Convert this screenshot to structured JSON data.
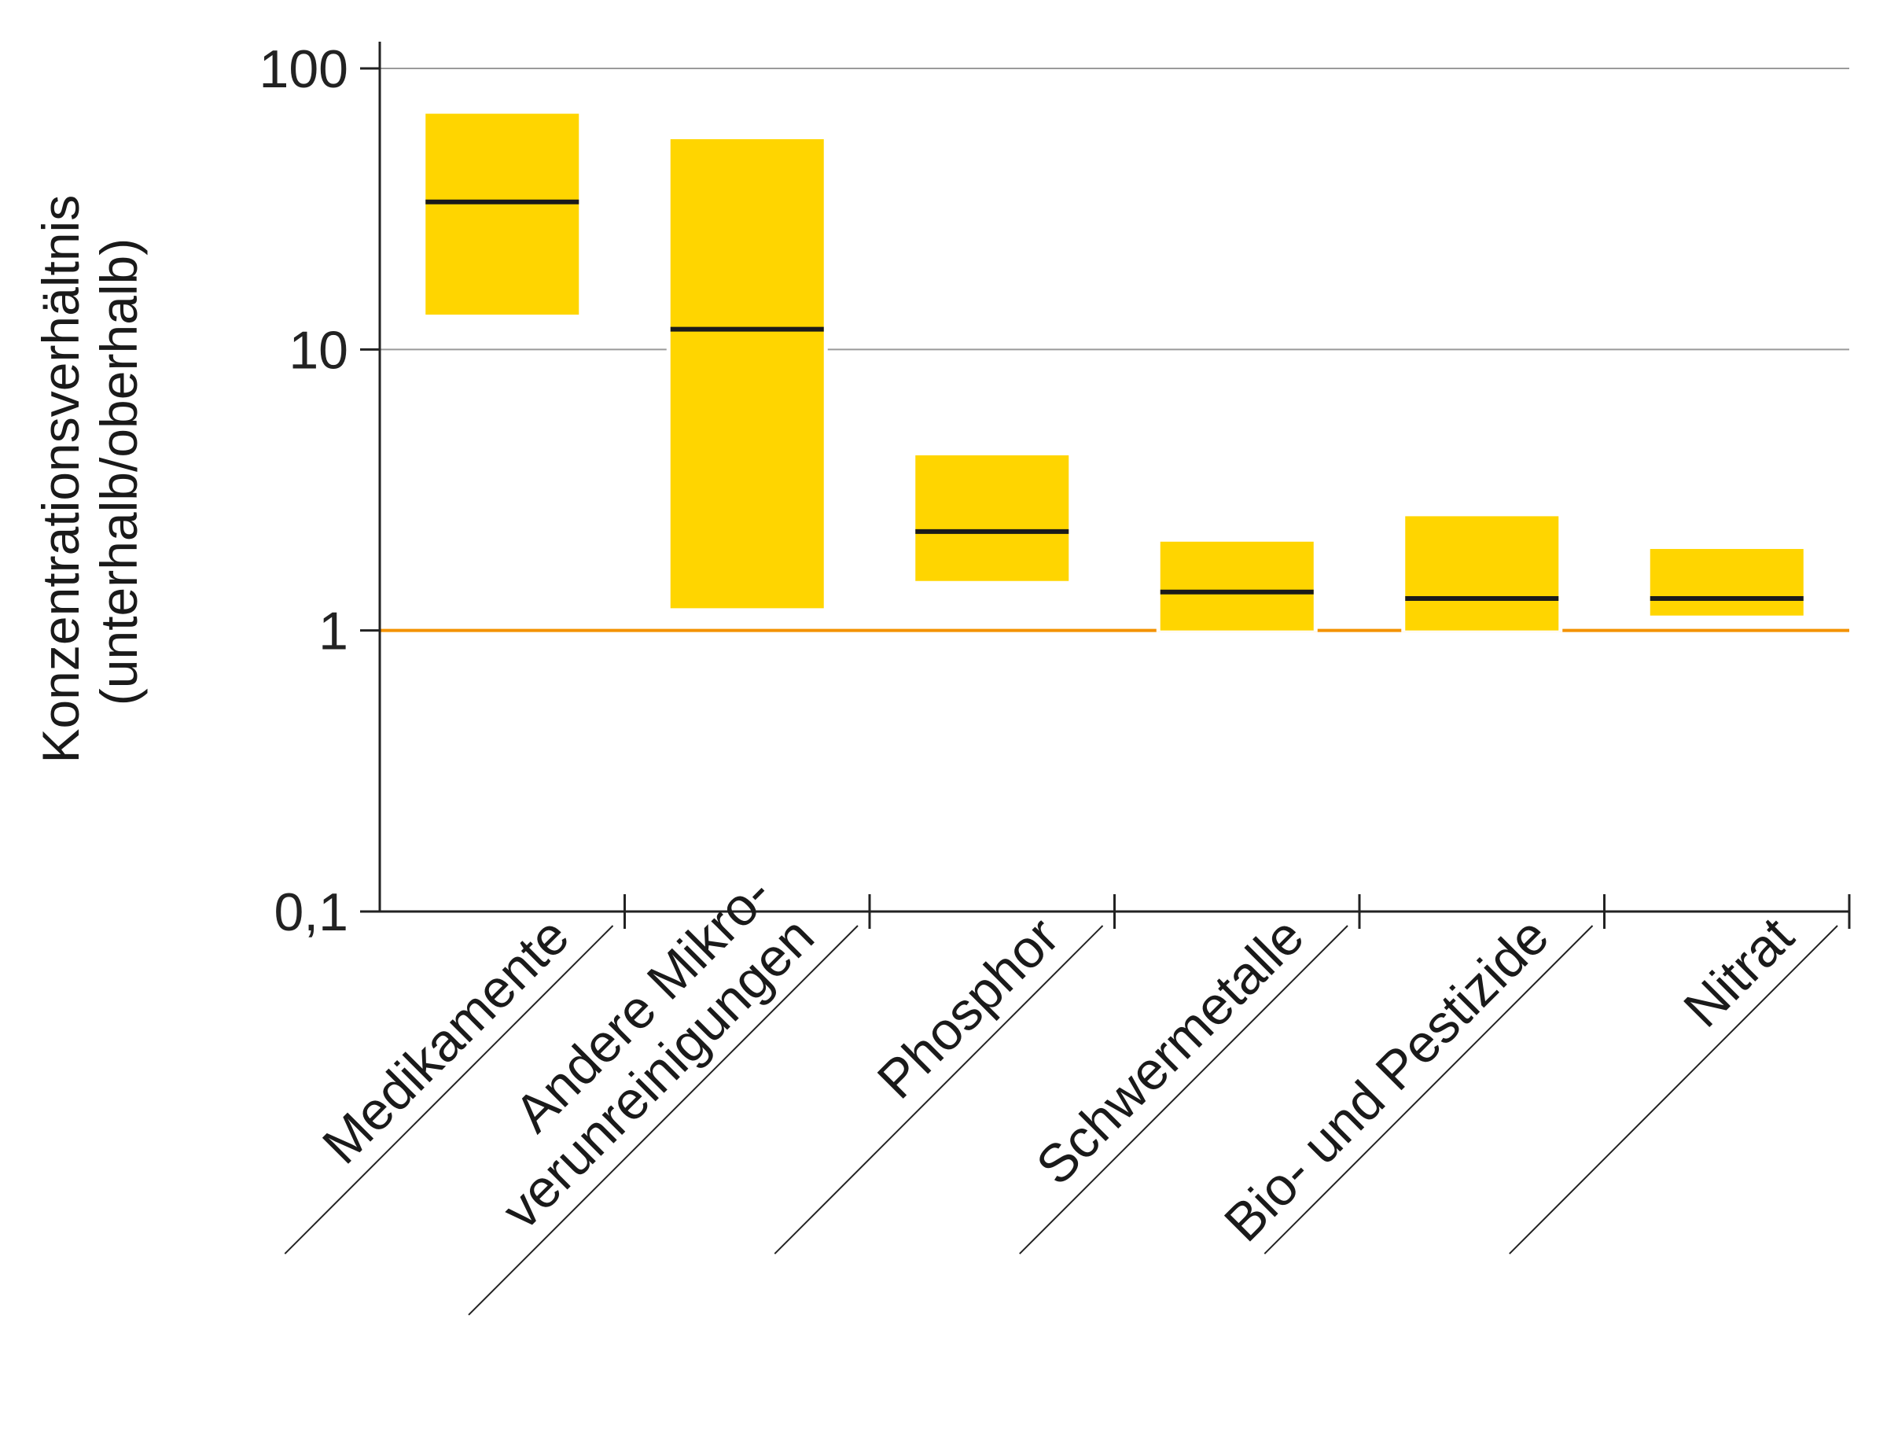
{
  "chart_data": {
    "type": "box",
    "title": "",
    "ylabel_lines": [
      "Konzentrationsverhältnis",
      "(unterhalb/oberhalb)"
    ],
    "yscale": "log",
    "ylim": [
      0.1,
      100
    ],
    "yticks": [
      {
        "value": 0.1,
        "label": "0,1"
      },
      {
        "value": 1,
        "label": "1"
      },
      {
        "value": 10,
        "label": "10"
      },
      {
        "value": 100,
        "label": "100"
      }
    ],
    "reference_line": {
      "value": 1,
      "color": "#F39200"
    },
    "gridlines_at": [
      10,
      100
    ],
    "box_color": "#FFD500",
    "median_color": "#1a1a1a",
    "categories": [
      {
        "lines": [
          "Medikamente"
        ],
        "low": 13.3,
        "median": 33.5,
        "high": 69
      },
      {
        "lines": [
          "Andere Mikro-",
          "verunreinigungen"
        ],
        "low": 1.2,
        "median": 11.8,
        "high": 56
      },
      {
        "lines": [
          "Phosphor"
        ],
        "low": 1.5,
        "median": 2.25,
        "high": 4.2
      },
      {
        "lines": [
          "Schwermetalle"
        ],
        "low": 1.0,
        "median": 1.37,
        "high": 2.07
      },
      {
        "lines": [
          "Bio- und Pestizide"
        ],
        "low": 1.0,
        "median": 1.3,
        "high": 2.55
      },
      {
        "lines": [
          "Nitrat"
        ],
        "low": 1.13,
        "median": 1.3,
        "high": 1.95
      }
    ]
  }
}
